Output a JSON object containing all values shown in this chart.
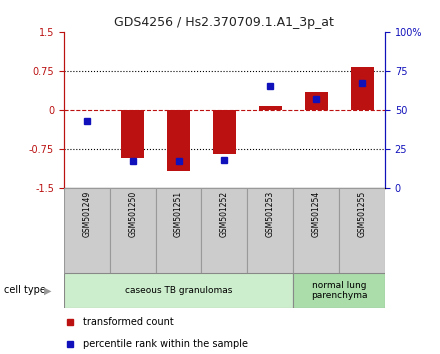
{
  "title": "GDS4256 / Hs2.370709.1.A1_3p_at",
  "samples": [
    "GSM501249",
    "GSM501250",
    "GSM501251",
    "GSM501252",
    "GSM501253",
    "GSM501254",
    "GSM501255"
  ],
  "transformed_counts": [
    0.0,
    -0.92,
    -1.18,
    -0.85,
    0.07,
    0.35,
    0.82
  ],
  "percentile_ranks": [
    43,
    17,
    17,
    18,
    65,
    57,
    67
  ],
  "ylim_left": [
    -1.5,
    1.5
  ],
  "ylim_right": [
    0,
    100
  ],
  "yticks_left": [
    -1.5,
    -0.75,
    0,
    0.75,
    1.5
  ],
  "yticks_right": [
    0,
    25,
    50,
    75,
    100
  ],
  "ytick_labels_left": [
    "-1.5",
    "-0.75",
    "0",
    "0.75",
    "1.5"
  ],
  "ytick_labels_right": [
    "0",
    "25",
    "50",
    "75",
    "100%"
  ],
  "red_color": "#BB1111",
  "blue_color": "#1111BB",
  "bar_width": 0.5,
  "groups": [
    {
      "label": "caseous TB granulomas",
      "samples": [
        0,
        1,
        2,
        3,
        4
      ],
      "color": "#cceecc"
    },
    {
      "label": "normal lung\nparenchyma",
      "samples": [
        5,
        6
      ],
      "color": "#aaddaa"
    }
  ],
  "cell_type_label": "cell type",
  "legend_red": "transformed count",
  "legend_blue": "percentile rank within the sample",
  "hlines_dotted": [
    -0.75,
    0,
    0.75
  ],
  "background_color": "#ffffff",
  "plot_bg_color": "#ffffff",
  "sample_box_color": "#cccccc"
}
